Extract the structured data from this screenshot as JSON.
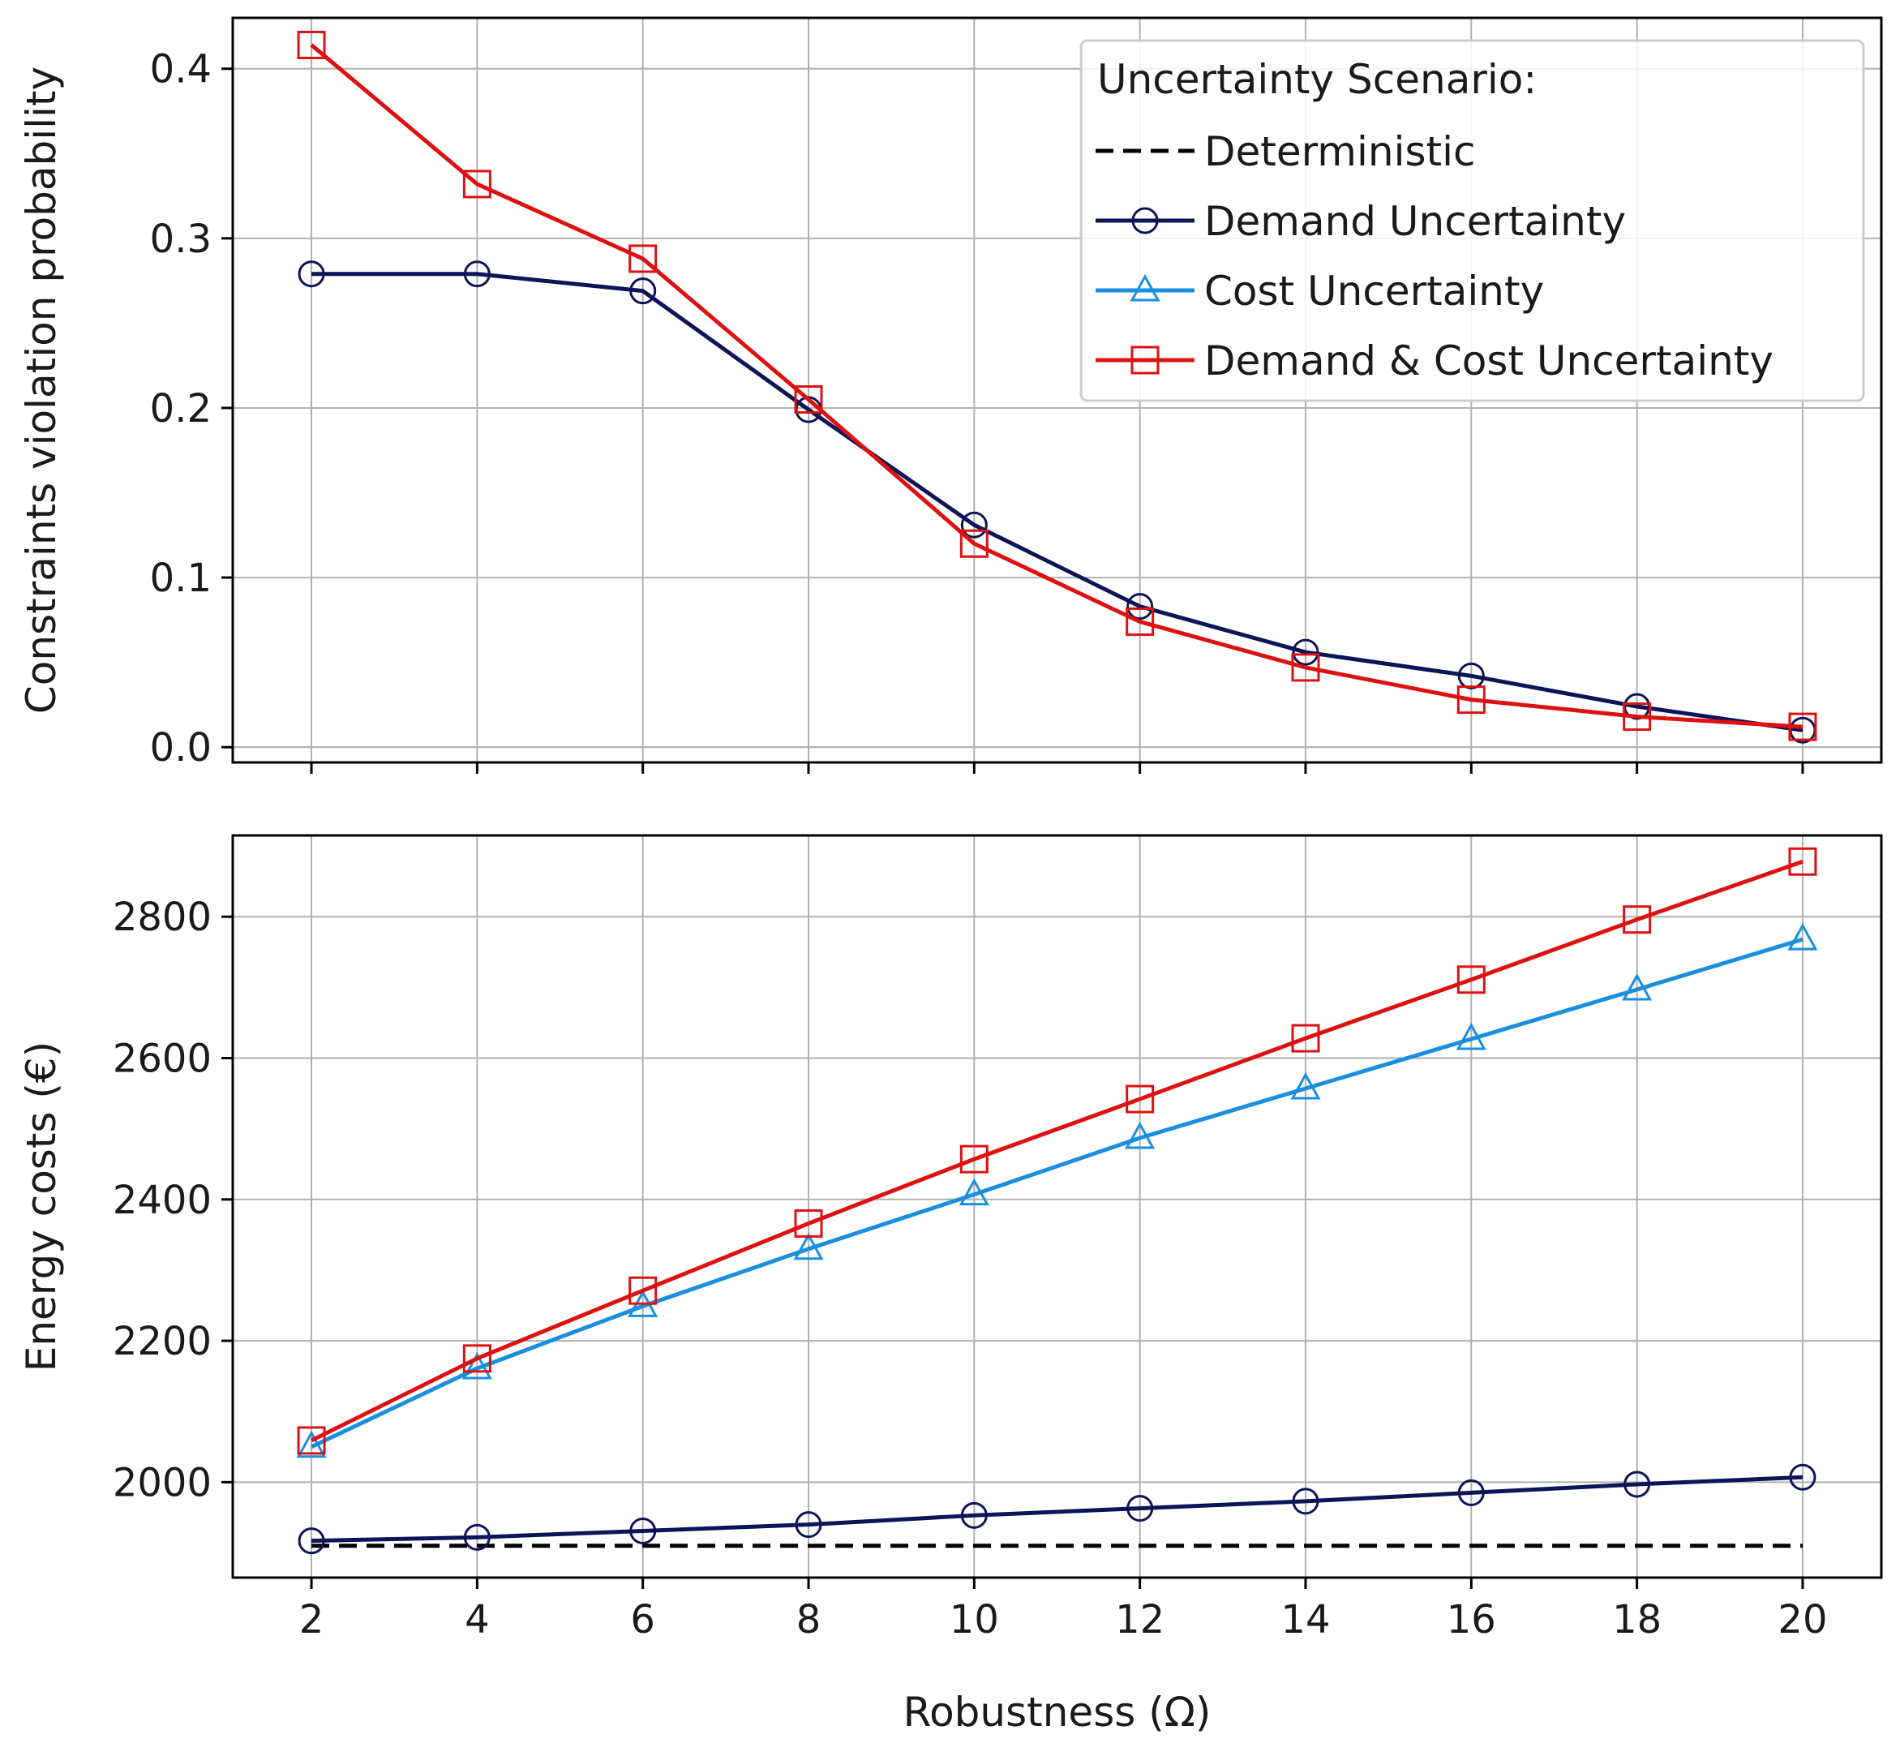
{
  "chart_data": [
    {
      "type": "line",
      "ylabel": "Constraints violation probability",
      "xlim": [
        1.05,
        20.95
      ],
      "ylim": [
        -0.009,
        0.43
      ],
      "x": [
        2,
        4,
        6,
        8,
        10,
        12,
        14,
        16,
        18,
        20
      ],
      "xticks": [
        "2",
        "4",
        "6",
        "8",
        "10",
        "12",
        "14",
        "16",
        "18",
        "20"
      ],
      "yticks": [
        {
          "value": 0.0,
          "label": "0.0"
        },
        {
          "value": 0.1,
          "label": "0.1"
        },
        {
          "value": 0.2,
          "label": "0.2"
        },
        {
          "value": 0.3,
          "label": "0.3"
        },
        {
          "value": 0.4,
          "label": "0.4"
        }
      ],
      "grid": true,
      "legend": {
        "title": "Uncertainty Scenario:",
        "placement": "top-right",
        "entries": [
          "Deterministic",
          "Demand Uncertainty",
          "Cost Uncertainty",
          "Demand & Cost Uncertainty"
        ]
      },
      "series": [
        {
          "name": "Demand Uncertainty",
          "color": "#0d1457",
          "marker": "circle",
          "values": [
            0.279,
            0.279,
            0.269,
            0.199,
            0.131,
            0.083,
            0.056,
            0.042,
            0.024,
            0.01
          ]
        },
        {
          "name": "Demand & Cost Uncertainty",
          "color": "#dd1111",
          "marker": "square",
          "values": [
            0.414,
            0.332,
            0.288,
            0.205,
            0.12,
            0.074,
            0.047,
            0.028,
            0.018,
            0.012
          ]
        }
      ]
    },
    {
      "type": "line",
      "xlabel": "Robustness (Ω)",
      "ylabel": "Energy costs (€)",
      "xlim": [
        1.05,
        20.95
      ],
      "ylim": [
        1865,
        2915
      ],
      "x": [
        2,
        4,
        6,
        8,
        10,
        12,
        14,
        16,
        18,
        20
      ],
      "xticks": [
        "2",
        "4",
        "6",
        "8",
        "10",
        "12",
        "14",
        "16",
        "18",
        "20"
      ],
      "yticks": [
        {
          "value": 2000,
          "label": "2000"
        },
        {
          "value": 2200,
          "label": "2200"
        },
        {
          "value": 2400,
          "label": "2400"
        },
        {
          "value": 2600,
          "label": "2600"
        },
        {
          "value": 2800,
          "label": "2800"
        }
      ],
      "grid": true,
      "series": [
        {
          "name": "Deterministic",
          "color": "#000000",
          "marker": "none",
          "dashed": true,
          "values": [
            1910,
            1910,
            1910,
            1910,
            1910,
            1910,
            1910,
            1910,
            1910,
            1910
          ]
        },
        {
          "name": "Demand Uncertainty",
          "color": "#0d1457",
          "marker": "circle",
          "values": [
            1917,
            1922,
            1931,
            1940,
            1953,
            1963,
            1973,
            1985,
            1997,
            2007
          ]
        },
        {
          "name": "Cost Uncertainty",
          "color": "#1a8fe0",
          "marker": "triangle",
          "values": [
            2050,
            2161,
            2249,
            2330,
            2407,
            2487,
            2557,
            2627,
            2697,
            2768
          ]
        },
        {
          "name": "Demand & Cost Uncertainty",
          "color": "#dd1111",
          "marker": "square",
          "values": [
            2059,
            2175,
            2271,
            2366,
            2457,
            2542,
            2628,
            2711,
            2796,
            2878
          ]
        }
      ]
    }
  ]
}
